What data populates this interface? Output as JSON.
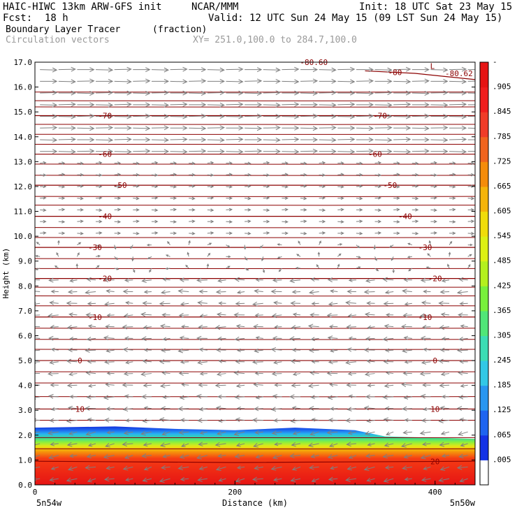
{
  "header": {
    "model": "HAIC-HIWC 13km ARW-GFS init",
    "org": "NCAR/MMM",
    "init": "Init: 18 UTC Sat 23 May 15",
    "fcst_label": "Fcst:",
    "fcst_value": "18 h",
    "valid": "Valid: 12 UTC Sun 24 May 15 (09 LST Sun 24 May 15)",
    "field": "Boundary Layer Tracer",
    "units": "(fraction)",
    "vectors": "Circulation vectors",
    "xy": "XY= 251.0,100.0 to 284.7,100.0"
  },
  "colors": {
    "contour": "#8b0000",
    "vector": "#7f7f7f",
    "colorbar": [
      "#ffffff",
      "#1432e6",
      "#1e64f0",
      "#2896f0",
      "#32c8e6",
      "#3cdcb4",
      "#50e678",
      "#78f03c",
      "#b4f01e",
      "#dcf014",
      "#f0dc0a",
      "#f5b40a",
      "#f58c0a",
      "#f0641e",
      "#f03c28",
      "#f01e1e",
      "#e61414"
    ]
  },
  "chart_data": {
    "type": "heatmap",
    "overlays": [
      "contour",
      "vector"
    ],
    "xlabel": "Distance (km)",
    "ylabel": "Height (km)",
    "xlim": [
      0,
      440
    ],
    "ylim": [
      0,
      17
    ],
    "x_ticks": [
      "0",
      "200",
      "400"
    ],
    "y_ticks": [
      "0.0",
      "1.0",
      "2.0",
      "3.0",
      "4.0",
      "5.0",
      "6.0",
      "7.0",
      "8.0",
      "9.0",
      "10.0",
      "11.0",
      "12.0",
      "13.0",
      "14.0",
      "15.0",
      "16.0",
      "17.0"
    ],
    "x_endpoints": {
      "left": "5n54w",
      "right": "5n50w"
    },
    "colorbar_labels": [
      "-",
      ".905",
      ".845",
      ".785",
      ".725",
      ".665",
      ".605",
      ".545",
      ".485",
      ".425",
      ".365",
      ".305",
      ".245",
      ".185",
      ".125",
      ".065",
      ".005"
    ],
    "tracer_top_km": [
      {
        "x": 0,
        "top": 2.3
      },
      {
        "x": 80,
        "top": 2.35
      },
      {
        "x": 140,
        "top": 2.25
      },
      {
        "x": 200,
        "top": 2.2
      },
      {
        "x": 260,
        "top": 2.3
      },
      {
        "x": 320,
        "top": 2.2
      },
      {
        "x": 350,
        "top": 1.95
      },
      {
        "x": 440,
        "top": 1.85
      }
    ],
    "contours": [
      {
        "value": 20,
        "label": "20",
        "label_x": 400,
        "points": [
          [
            0,
            0.95
          ],
          [
            200,
            0.9
          ],
          [
            440,
            0.95
          ]
        ]
      },
      {
        "value": 10,
        "label": "10",
        "label_x": 45,
        "label_x2": 400,
        "points": [
          [
            0,
            3.05
          ],
          [
            440,
            3.05
          ]
        ]
      },
      {
        "value": 0,
        "label": "0",
        "label_x": 45,
        "label_x2": 400,
        "points": [
          [
            0,
            5.0
          ],
          [
            440,
            5.0
          ]
        ]
      },
      {
        "value": -10,
        "label": "-10",
        "label_x": 60,
        "label_x2": 390,
        "points": [
          [
            0,
            6.75
          ],
          [
            440,
            6.75
          ]
        ]
      },
      {
        "value": -20,
        "label": "-20",
        "label_x": 70,
        "label_x2": 400,
        "points": [
          [
            0,
            8.3
          ],
          [
            440,
            8.3
          ]
        ]
      },
      {
        "value": -30,
        "label": "-30",
        "label_x": 60,
        "label_x2": 390,
        "points": [
          [
            0,
            9.55
          ],
          [
            440,
            9.55
          ]
        ]
      },
      {
        "value": -40,
        "label": "-40",
        "label_x": 70,
        "label_x2": 370,
        "points": [
          [
            0,
            10.8
          ],
          [
            440,
            10.8
          ]
        ]
      },
      {
        "value": -50,
        "label": "-50",
        "label_x": 85,
        "label_x2": 355,
        "points": [
          [
            0,
            12.05
          ],
          [
            440,
            12.05
          ]
        ]
      },
      {
        "value": -60,
        "label": "-60",
        "label_x": 70,
        "label_x2": 340,
        "points": [
          [
            0,
            13.3
          ],
          [
            440,
            13.3
          ]
        ]
      },
      {
        "value": -70,
        "label": "-70",
        "label_x": 70,
        "label_x2": 345,
        "points": [
          [
            0,
            14.85
          ],
          [
            440,
            14.85
          ]
        ]
      },
      {
        "value": -80,
        "label": "-80",
        "label_x": 360,
        "points": [
          [
            330,
            16.65
          ],
          [
            380,
            16.55
          ],
          [
            440,
            16.3
          ]
        ]
      }
    ],
    "contour_extra_levels_km": [
      1.45,
      1.9,
      2.6,
      3.55,
      4.1,
      4.55,
      5.45,
      5.85,
      6.3,
      7.2,
      7.6,
      7.95,
      8.7,
      9.1,
      9.95,
      10.35,
      11.25,
      11.6,
      12.45,
      12.9,
      13.7,
      14.1,
      14.5,
      15.2,
      15.45,
      15.8
    ],
    "annotations": [
      {
        "text": "L",
        "x": 395,
        "y": 16.85
      },
      {
        "text": "-80.62",
        "x": 410,
        "y": 16.55
      },
      {
        "text": "-80.60",
        "x": 265,
        "y": 17.0
      }
    ],
    "vector_levels": [
      {
        "y_min": 13.0,
        "y_max": 17.0,
        "direction": "east",
        "speed": 1.0
      },
      {
        "y_min": 10.0,
        "y_max": 13.0,
        "direction": "east",
        "speed": 0.35
      },
      {
        "y_min": 8.5,
        "y_max": 10.0,
        "direction": "variable",
        "speed": 0.2
      },
      {
        "y_min": 0.0,
        "y_max": 8.5,
        "direction": "west",
        "speed": 0.6
      }
    ]
  }
}
